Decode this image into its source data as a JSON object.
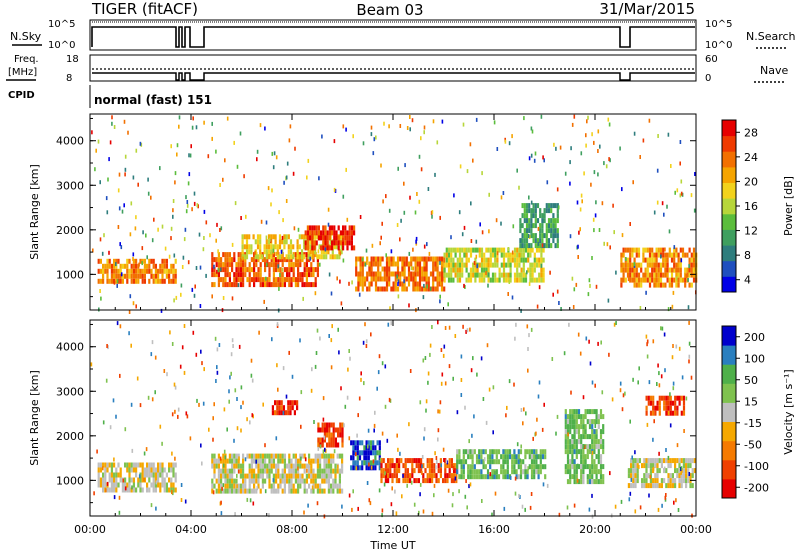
{
  "header": {
    "title_left": "TIGER (fitACF)",
    "title_center": "Beam 03",
    "title_right": "31/Mar/2015"
  },
  "noise_panel": {
    "left_label": "N.Sky",
    "right_label": "N.Search",
    "left_ticks": [
      "10^5",
      "10^0"
    ],
    "right_ticks": [
      "10^5",
      "10^0"
    ]
  },
  "freq_panel": {
    "left_label_line1": "Freq.",
    "left_label_line2": "[MHz]",
    "right_label": "Nave",
    "left_ticks": [
      "18",
      "8"
    ],
    "right_ticks": [
      "60",
      "0"
    ]
  },
  "cpid_panel": {
    "label": "CPID",
    "value": "normal (fast) 151"
  },
  "chart_data": [
    {
      "type": "heatmap",
      "panel": "power",
      "ylabel": "Slant Range [km]",
      "ylim": [
        200,
        4600
      ],
      "yticks": [
        "1000",
        "2000",
        "3000",
        "4000"
      ],
      "colorbar_label": "Power [dB]",
      "colorbar_ticks": [
        "28",
        "24",
        "20",
        "16",
        "12",
        "8",
        "4"
      ],
      "colorbar_range": [
        0,
        32
      ],
      "colors": [
        "#0000e6",
        "#1f4fbf",
        "#2e7d7d",
        "#3f9f5f",
        "#5bbd3c",
        "#b7d63a",
        "#f2d21c",
        "#f5a400",
        "#f27000",
        "#ef3a00",
        "#e60000"
      ],
      "echo_regions": [
        {
          "x": [
            0.3,
            3.4
          ],
          "y": [
            800,
            1350
          ],
          "level": 0.78
        },
        {
          "x": [
            4.8,
            9.0
          ],
          "y": [
            800,
            1500
          ],
          "level": 0.85
        },
        {
          "x": [
            6.0,
            10.0
          ],
          "y": [
            1400,
            1900
          ],
          "level": 0.6
        },
        {
          "x": [
            8.5,
            10.5
          ],
          "y": [
            1600,
            2100
          ],
          "level": 0.95
        },
        {
          "x": [
            10.5,
            14.0
          ],
          "y": [
            700,
            1400
          ],
          "level": 0.8
        },
        {
          "x": [
            14.0,
            18.0
          ],
          "y": [
            900,
            1600
          ],
          "level": 0.55
        },
        {
          "x": [
            17.0,
            18.5
          ],
          "y": [
            1600,
            2600
          ],
          "level": 0.3
        },
        {
          "x": [
            21.0,
            24.0
          ],
          "y": [
            800,
            1600
          ],
          "level": 0.75
        }
      ]
    },
    {
      "type": "heatmap",
      "panel": "velocity",
      "ylabel": "Slant Range [km]",
      "xlabel": "Time UT",
      "ylim": [
        200,
        4600
      ],
      "yticks": [
        "1000",
        "2000",
        "3000",
        "4000"
      ],
      "xlim": [
        0,
        24
      ],
      "xticks": [
        "00:00",
        "04:00",
        "08:00",
        "12:00",
        "16:00",
        "20:00",
        "00:00"
      ],
      "colorbar_label": "Velocity [m s⁻¹]",
      "colorbar_ticks": [
        "200",
        "100",
        "50",
        "15",
        "-15",
        "-50",
        "-100",
        "-200"
      ],
      "colorbar_range": [
        -250,
        250
      ],
      "colors": [
        "#e60000",
        "#f04000",
        "#f57a00",
        "#f5a800",
        "#bfbfbf",
        "#7fc24f",
        "#4fb04a",
        "#2a7fbf",
        "#0000cc"
      ],
      "echo_regions": [
        {
          "x": [
            0.3,
            3.4
          ],
          "y": [
            800,
            1400
          ],
          "level": 0.5
        },
        {
          "x": [
            4.8,
            10.0
          ],
          "y": [
            800,
            1600
          ],
          "level": 0.5
        },
        {
          "x": [
            7.2,
            8.2
          ],
          "y": [
            2500,
            2800
          ],
          "level": 0.08
        },
        {
          "x": [
            9.0,
            10.0
          ],
          "y": [
            1800,
            2300
          ],
          "level": 0.1
        },
        {
          "x": [
            10.3,
            11.5
          ],
          "y": [
            1300,
            1900
          ],
          "level": 0.92
        },
        {
          "x": [
            11.5,
            14.5
          ],
          "y": [
            1000,
            1500
          ],
          "level": 0.15
        },
        {
          "x": [
            14.5,
            18.0
          ],
          "y": [
            1100,
            1700
          ],
          "level": 0.7
        },
        {
          "x": [
            18.8,
            20.3
          ],
          "y": [
            1000,
            2600
          ],
          "level": 0.68
        },
        {
          "x": [
            21.3,
            24.0
          ],
          "y": [
            900,
            1500
          ],
          "level": 0.5
        },
        {
          "x": [
            22.0,
            23.5
          ],
          "y": [
            2500,
            2900
          ],
          "level": 0.1
        }
      ]
    }
  ]
}
